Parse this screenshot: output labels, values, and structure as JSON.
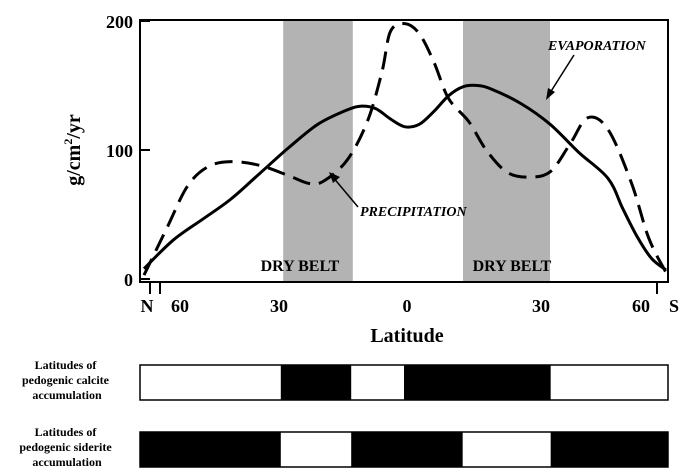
{
  "chart_data": {
    "type": "line",
    "xlabel": "Latitude",
    "ylabel": "g/cm²/yr",
    "ylim": [
      0,
      200
    ],
    "y_ticks": [
      0,
      100,
      200
    ],
    "x_tick_labels": [
      "N",
      "60",
      "30",
      "0",
      "30",
      "60",
      "S"
    ],
    "grid": false,
    "series": [
      {
        "name": "EVAPORATION",
        "style": "solid",
        "color": "#000000",
        "points": [
          [
            -90,
            8
          ],
          [
            -80,
            30
          ],
          [
            -70,
            46
          ],
          [
            -60,
            62
          ],
          [
            -50,
            82
          ],
          [
            -40,
            102
          ],
          [
            -30,
            120
          ],
          [
            -20,
            131
          ],
          [
            -15,
            134
          ],
          [
            -10,
            132
          ],
          [
            -5,
            124
          ],
          [
            0,
            118
          ],
          [
            5,
            120
          ],
          [
            10,
            130
          ],
          [
            15,
            142
          ],
          [
            20,
            149
          ],
          [
            25,
            150
          ],
          [
            30,
            147
          ],
          [
            40,
            136
          ],
          [
            50,
            120
          ],
          [
            60,
            98
          ],
          [
            70,
            78
          ],
          [
            75,
            55
          ],
          [
            80,
            33
          ],
          [
            85,
            16
          ],
          [
            90,
            7
          ]
        ]
      },
      {
        "name": "PRECIPITATION",
        "style": "dashed",
        "color": "#000000",
        "points": [
          [
            -90,
            3
          ],
          [
            -82,
            40
          ],
          [
            -75,
            72
          ],
          [
            -68,
            87
          ],
          [
            -60,
            91
          ],
          [
            -50,
            88
          ],
          [
            -40,
            80
          ],
          [
            -33,
            74
          ],
          [
            -28,
            76
          ],
          [
            -20,
            92
          ],
          [
            -13,
            122
          ],
          [
            -8,
            160
          ],
          [
            -5,
            192
          ],
          [
            0,
            198
          ],
          [
            5,
            190
          ],
          [
            10,
            168
          ],
          [
            15,
            140
          ],
          [
            22,
            122
          ],
          [
            28,
            100
          ],
          [
            35,
            83
          ],
          [
            42,
            79
          ],
          [
            50,
            83
          ],
          [
            57,
            105
          ],
          [
            63,
            125
          ],
          [
            70,
            116
          ],
          [
            78,
            75
          ],
          [
            84,
            32
          ],
          [
            90,
            5
          ]
        ]
      }
    ],
    "dry_belts": [
      {
        "label": "DRY BELT",
        "x_range": [
          -42,
          -18
        ]
      },
      {
        "label": "DRY BELT",
        "x_range": [
          20,
          50
        ]
      }
    ],
    "annotations": [
      "EVAPORATION",
      "PRECIPITATION"
    ],
    "bars": [
      {
        "label": "Latitudes of pedogenic calcite accumulation",
        "segments": [
          {
            "range": [
              -90,
              -42
            ],
            "fill": "white"
          },
          {
            "range": [
              -42,
              -18
            ],
            "fill": "black"
          },
          {
            "range": [
              -18,
              0
            ],
            "fill": "white"
          },
          {
            "range": [
              0,
              20
            ],
            "fill": "black"
          },
          {
            "range": [
              20,
              50
            ],
            "fill": "black"
          },
          {
            "range": [
              50,
              90
            ],
            "fill": "white"
          }
        ]
      },
      {
        "label": "Latitudes of pedogenic siderite accumulation",
        "segments": [
          {
            "range": [
              -90,
              -42
            ],
            "fill": "black"
          },
          {
            "range": [
              -42,
              -18
            ],
            "fill": "white"
          },
          {
            "range": [
              -18,
              0
            ],
            "fill": "black"
          },
          {
            "range": [
              0,
              20
            ],
            "fill": "black"
          },
          {
            "range": [
              20,
              50
            ],
            "fill": "white"
          },
          {
            "range": [
              50,
              90
            ],
            "fill": "black"
          }
        ]
      }
    ]
  },
  "text": {
    "y_tick_0": "0",
    "y_tick_100": "100",
    "y_tick_200": "200",
    "ylabel_main": "g/cm",
    "ylabel_sup": "2",
    "ylabel_tail": "/yr",
    "xlabel": "Latitude",
    "x_tick_n": "N",
    "x_tick_60n": "60",
    "x_tick_30n": "30",
    "x_tick_0": "0",
    "x_tick_30s": "30",
    "x_tick_60s": "60",
    "x_tick_s": "S",
    "dry_belt_1": "DRY BELT",
    "dry_belt_2": "DRY BELT",
    "evaporation_label": "EVAPORATION",
    "precipitation_label": "PRECIPITATION",
    "calcite_l1": "Latitudes of",
    "calcite_l2": "pedogenic calcite",
    "calcite_l3": "accumulation",
    "siderite_l1": "Latitudes of",
    "siderite_l2": "pedogenic siderite",
    "siderite_l3": "accumulation"
  }
}
